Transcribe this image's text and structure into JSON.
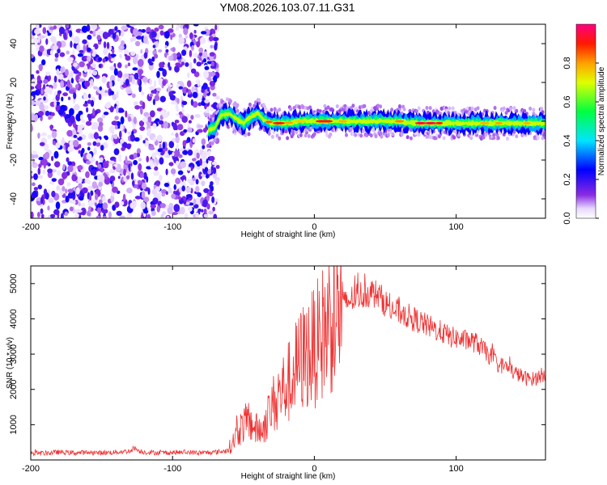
{
  "title": "YM08.2026.103.07.11.G31",
  "chart_data": [
    {
      "type": "heatmap",
      "name": "spectrogram",
      "xlabel": "Height of straight line (km)",
      "ylabel": "Frequency (Hz)",
      "xlim": [
        -200,
        163
      ],
      "ylim": [
        -50,
        50
      ],
      "xticks": [
        -200,
        -100,
        0,
        100
      ],
      "yticks": [
        -40,
        -20,
        0,
        20,
        40
      ],
      "noise_region_x": [
        -200,
        -68
      ],
      "signal_ridge": {
        "x": [
          -75,
          -70,
          -66,
          -60,
          -55,
          -50,
          -45,
          -40,
          -36,
          -30,
          -20,
          -10,
          0,
          10,
          20,
          30,
          40,
          50,
          60,
          70,
          80,
          90,
          100,
          110,
          120,
          130,
          140,
          150,
          163
        ],
        "y": [
          -5,
          -3,
          3,
          4,
          1,
          -1,
          2,
          4,
          1,
          -1,
          -1,
          0,
          0,
          0,
          0,
          0,
          0,
          0,
          0,
          -1,
          -1,
          -1,
          -1,
          -1,
          -1,
          -1,
          -1,
          -1,
          -1
        ]
      },
      "colorbar": {
        "label": "Normalized spectral amplitude",
        "range": [
          0.0,
          1.0
        ],
        "ticks": [
          0.0,
          0.2,
          0.4,
          0.6,
          0.8
        ]
      }
    },
    {
      "type": "line",
      "name": "snr",
      "xlabel": "Height of straight line (km)",
      "ylabel": "SNR (10 * v/v)",
      "xlim": [
        -200,
        163
      ],
      "ylim": [
        0,
        5500
      ],
      "xticks": [
        -200,
        -100,
        0,
        100
      ],
      "yticks": [
        1000,
        2000,
        3000,
        4000,
        5000
      ],
      "color": "#ee3333",
      "series": [
        {
          "name": "SNR",
          "x": [
            -200,
            -190,
            -180,
            -170,
            -160,
            -150,
            -140,
            -130,
            -127,
            -124,
            -120,
            -110,
            -100,
            -90,
            -80,
            -70,
            -62,
            -58,
            -54,
            -50,
            -46,
            -42,
            -38,
            -34,
            -30,
            -26,
            -22,
            -18,
            -14,
            -10,
            -6,
            -2,
            2,
            6,
            10,
            14,
            18,
            22,
            26,
            30,
            35,
            40,
            45,
            50,
            55,
            60,
            65,
            70,
            75,
            80,
            85,
            90,
            95,
            100,
            105,
            110,
            115,
            120,
            125,
            130,
            135,
            140,
            145,
            150,
            155,
            160,
            163
          ],
          "values": [
            200,
            190,
            220,
            200,
            210,
            200,
            220,
            250,
            350,
            260,
            220,
            200,
            210,
            220,
            200,
            220,
            260,
            450,
            800,
            1000,
            1100,
            900,
            800,
            1100,
            1500,
            1800,
            2000,
            2200,
            2500,
            2800,
            3000,
            3100,
            3300,
            3600,
            3900,
            4150,
            4300,
            4450,
            4550,
            4650,
            4700,
            4750,
            4680,
            4450,
            4250,
            4200,
            4100,
            4000,
            3900,
            3800,
            3700,
            3620,
            3500,
            3450,
            3400,
            3380,
            3300,
            3100,
            2900,
            2700,
            2650,
            2500,
            2400,
            2300,
            2300,
            2400,
            2450
          ]
        }
      ]
    }
  ]
}
